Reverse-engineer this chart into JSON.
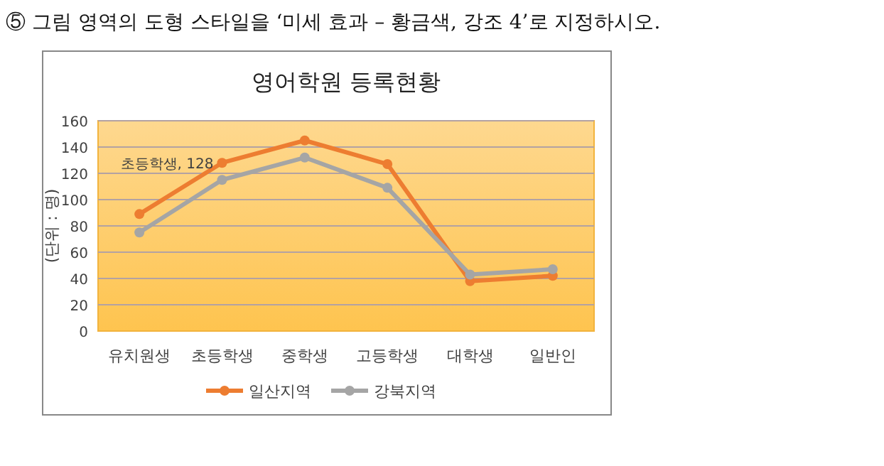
{
  "chart_data": {
    "type": "line",
    "title": "영어학원 등록현황",
    "ylabel": "(단위 : 명)",
    "categories": [
      "유치원생",
      "초등학생",
      "중학생",
      "고등학생",
      "대학생",
      "일반인"
    ],
    "series": [
      {
        "name": "일산지역",
        "color": "#ed7d31",
        "values": [
          89,
          128,
          145,
          127,
          38,
          42
        ]
      },
      {
        "name": "강북지역",
        "color": "#a5a5a5",
        "values": [
          75,
          115,
          132,
          109,
          43,
          47
        ]
      }
    ],
    "ylim": [
      0,
      160
    ],
    "yticks": [
      0,
      20,
      40,
      60,
      80,
      100,
      120,
      140,
      160
    ],
    "grid": "y",
    "legend": "bottom",
    "marker": "circle",
    "line_style": "solid",
    "annotations": [
      "⑤ 그림 영역의 도형 스타일을 ‘미세 효과 – 황금색, 강조 4’로 지정하시오.",
      {
        "text": "초등학생, 128",
        "x": "초등학생",
        "y": 128
      }
    ]
  }
}
